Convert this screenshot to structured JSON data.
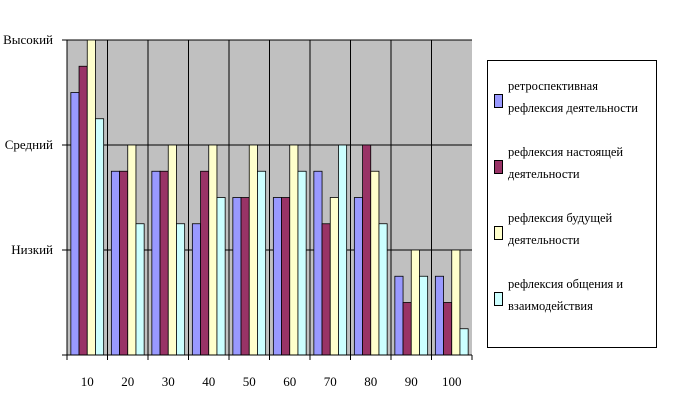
{
  "chart_data": {
    "type": "bar",
    "categories": [
      "10",
      "20",
      "30",
      "40",
      "50",
      "60",
      "70",
      "80",
      "90",
      "100"
    ],
    "y_levels": [
      "Низкий",
      "Средний",
      "Высокий"
    ],
    "ylim": [
      0,
      3.0
    ],
    "grid": true,
    "legend_position": "right",
    "series": [
      {
        "name": "ретроспективная рефлексия деятельности",
        "color": "#9999ff",
        "values": [
          2.5,
          1.75,
          1.75,
          1.25,
          1.5,
          1.5,
          1.75,
          1.5,
          0.75,
          0.75
        ]
      },
      {
        "name": "рефлексия настоящей деятельности",
        "color": "#993366",
        "values": [
          2.75,
          1.75,
          1.75,
          1.75,
          1.5,
          1.5,
          1.25,
          2.0,
          0.5,
          0.5
        ]
      },
      {
        "name": "рефлексия будущей деятельности",
        "color": "#ffffcc",
        "values": [
          3.0,
          2.0,
          2.0,
          2.0,
          2.0,
          2.0,
          1.5,
          1.75,
          1.0,
          1.0
        ]
      },
      {
        "name": "рефлексия общения и взаимодействия",
        "color": "#ccffff",
        "values": [
          2.25,
          1.25,
          1.25,
          1.5,
          1.75,
          1.75,
          2.0,
          1.25,
          0.75,
          0.25
        ]
      }
    ]
  }
}
